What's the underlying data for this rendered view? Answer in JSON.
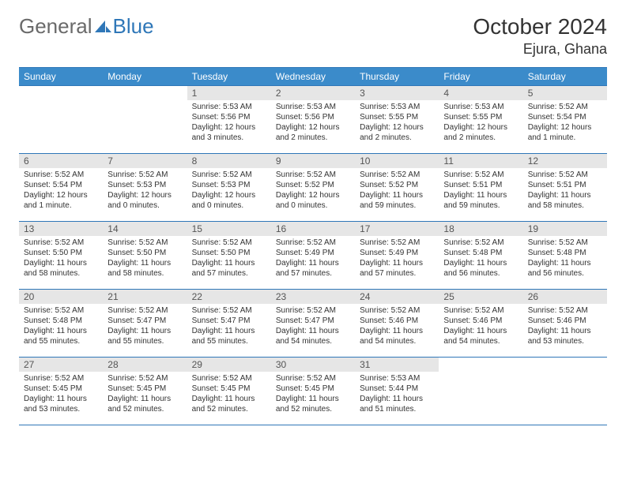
{
  "brand": {
    "part1": "General",
    "part2": "Blue"
  },
  "title": "October 2024",
  "location": "Ejura, Ghana",
  "colors": {
    "header_bg": "#3b8bca",
    "border": "#2f77b8",
    "daynum_bg": "#e6e6e6",
    "text": "#333333",
    "brand_gray": "#6a6a6a",
    "brand_blue": "#2f77b8"
  },
  "weekdays": [
    "Sunday",
    "Monday",
    "Tuesday",
    "Wednesday",
    "Thursday",
    "Friday",
    "Saturday"
  ],
  "weeks": [
    [
      null,
      null,
      {
        "n": "1",
        "sr": "5:53 AM",
        "ss": "5:56 PM",
        "dl": "12 hours and 3 minutes."
      },
      {
        "n": "2",
        "sr": "5:53 AM",
        "ss": "5:56 PM",
        "dl": "12 hours and 2 minutes."
      },
      {
        "n": "3",
        "sr": "5:53 AM",
        "ss": "5:55 PM",
        "dl": "12 hours and 2 minutes."
      },
      {
        "n": "4",
        "sr": "5:53 AM",
        "ss": "5:55 PM",
        "dl": "12 hours and 2 minutes."
      },
      {
        "n": "5",
        "sr": "5:52 AM",
        "ss": "5:54 PM",
        "dl": "12 hours and 1 minute."
      }
    ],
    [
      {
        "n": "6",
        "sr": "5:52 AM",
        "ss": "5:54 PM",
        "dl": "12 hours and 1 minute."
      },
      {
        "n": "7",
        "sr": "5:52 AM",
        "ss": "5:53 PM",
        "dl": "12 hours and 0 minutes."
      },
      {
        "n": "8",
        "sr": "5:52 AM",
        "ss": "5:53 PM",
        "dl": "12 hours and 0 minutes."
      },
      {
        "n": "9",
        "sr": "5:52 AM",
        "ss": "5:52 PM",
        "dl": "12 hours and 0 minutes."
      },
      {
        "n": "10",
        "sr": "5:52 AM",
        "ss": "5:52 PM",
        "dl": "11 hours and 59 minutes."
      },
      {
        "n": "11",
        "sr": "5:52 AM",
        "ss": "5:51 PM",
        "dl": "11 hours and 59 minutes."
      },
      {
        "n": "12",
        "sr": "5:52 AM",
        "ss": "5:51 PM",
        "dl": "11 hours and 58 minutes."
      }
    ],
    [
      {
        "n": "13",
        "sr": "5:52 AM",
        "ss": "5:50 PM",
        "dl": "11 hours and 58 minutes."
      },
      {
        "n": "14",
        "sr": "5:52 AM",
        "ss": "5:50 PM",
        "dl": "11 hours and 58 minutes."
      },
      {
        "n": "15",
        "sr": "5:52 AM",
        "ss": "5:50 PM",
        "dl": "11 hours and 57 minutes."
      },
      {
        "n": "16",
        "sr": "5:52 AM",
        "ss": "5:49 PM",
        "dl": "11 hours and 57 minutes."
      },
      {
        "n": "17",
        "sr": "5:52 AM",
        "ss": "5:49 PM",
        "dl": "11 hours and 57 minutes."
      },
      {
        "n": "18",
        "sr": "5:52 AM",
        "ss": "5:48 PM",
        "dl": "11 hours and 56 minutes."
      },
      {
        "n": "19",
        "sr": "5:52 AM",
        "ss": "5:48 PM",
        "dl": "11 hours and 56 minutes."
      }
    ],
    [
      {
        "n": "20",
        "sr": "5:52 AM",
        "ss": "5:48 PM",
        "dl": "11 hours and 55 minutes."
      },
      {
        "n": "21",
        "sr": "5:52 AM",
        "ss": "5:47 PM",
        "dl": "11 hours and 55 minutes."
      },
      {
        "n": "22",
        "sr": "5:52 AM",
        "ss": "5:47 PM",
        "dl": "11 hours and 55 minutes."
      },
      {
        "n": "23",
        "sr": "5:52 AM",
        "ss": "5:47 PM",
        "dl": "11 hours and 54 minutes."
      },
      {
        "n": "24",
        "sr": "5:52 AM",
        "ss": "5:46 PM",
        "dl": "11 hours and 54 minutes."
      },
      {
        "n": "25",
        "sr": "5:52 AM",
        "ss": "5:46 PM",
        "dl": "11 hours and 54 minutes."
      },
      {
        "n": "26",
        "sr": "5:52 AM",
        "ss": "5:46 PM",
        "dl": "11 hours and 53 minutes."
      }
    ],
    [
      {
        "n": "27",
        "sr": "5:52 AM",
        "ss": "5:45 PM",
        "dl": "11 hours and 53 minutes."
      },
      {
        "n": "28",
        "sr": "5:52 AM",
        "ss": "5:45 PM",
        "dl": "11 hours and 52 minutes."
      },
      {
        "n": "29",
        "sr": "5:52 AM",
        "ss": "5:45 PM",
        "dl": "11 hours and 52 minutes."
      },
      {
        "n": "30",
        "sr": "5:52 AM",
        "ss": "5:45 PM",
        "dl": "11 hours and 52 minutes."
      },
      {
        "n": "31",
        "sr": "5:53 AM",
        "ss": "5:44 PM",
        "dl": "11 hours and 51 minutes."
      },
      null,
      null
    ]
  ],
  "labels": {
    "sunrise": "Sunrise:",
    "sunset": "Sunset:",
    "daylight": "Daylight:"
  }
}
